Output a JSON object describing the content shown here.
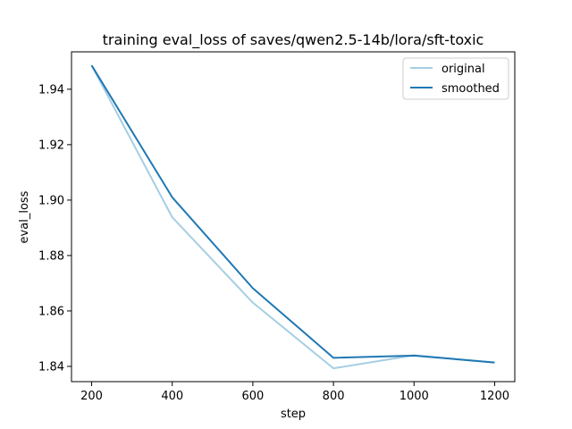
{
  "chart_data": {
    "type": "line",
    "title": "training eval_loss of saves/qwen2.5-14b/lora/sft-toxic",
    "xlabel": "step",
    "ylabel": "eval_loss",
    "x": [
      200,
      400,
      600,
      800,
      1000,
      1200
    ],
    "xlim": [
      150,
      1250
    ],
    "ylim": [
      1.8345,
      1.9535
    ],
    "xticks": [
      200,
      400,
      600,
      800,
      1000,
      1200
    ],
    "yticks": [
      1.84,
      1.86,
      1.88,
      1.9,
      1.92,
      1.94
    ],
    "ytick_labels": [
      "1.84",
      "1.86",
      "1.88",
      "1.90",
      "1.92",
      "1.94"
    ],
    "series": [
      {
        "name": "original",
        "color": "#a6cee3",
        "values": [
          1.9486,
          1.8938,
          1.863,
          1.8393,
          1.844,
          1.8414
        ]
      },
      {
        "name": "smoothed",
        "color": "#1f78b4",
        "values": [
          1.9486,
          1.901,
          1.8682,
          1.8431,
          1.8439,
          1.8414
        ]
      }
    ],
    "legend": "top-right",
    "grid": false
  }
}
